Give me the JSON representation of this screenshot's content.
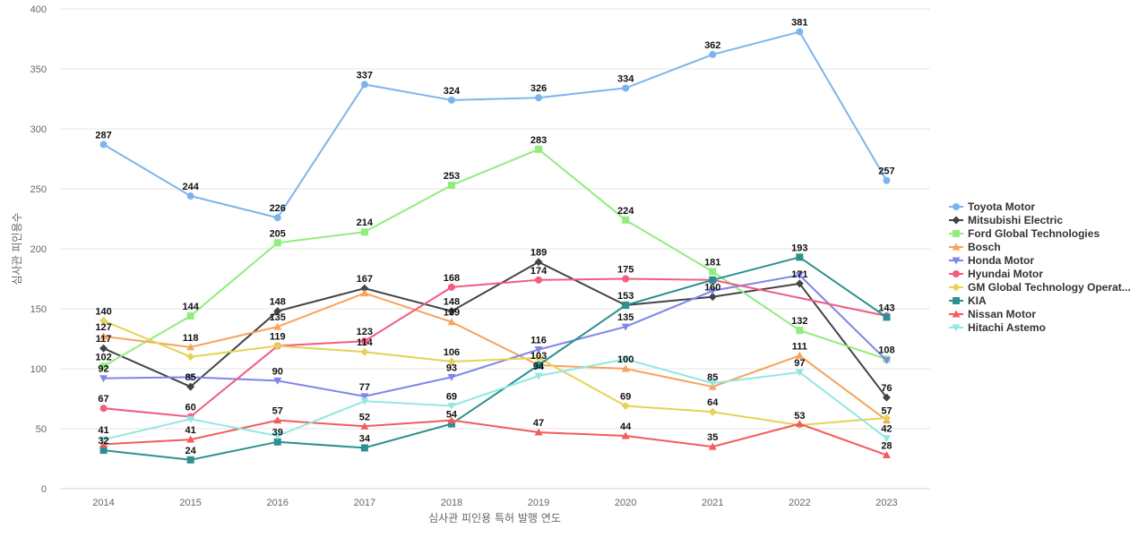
{
  "chart_data": {
    "type": "line",
    "title": "",
    "xlabel": "심사관 피인용 특허 발행 연도",
    "ylabel": "심사관 피인용수",
    "ylim": [
      0,
      400
    ],
    "yticks": [
      0,
      50,
      100,
      150,
      200,
      250,
      300,
      350,
      400
    ],
    "grid": true,
    "legend_position": "right",
    "x": [
      "2014",
      "2015",
      "2016",
      "2017",
      "2018",
      "2019",
      "2020",
      "2021",
      "2022",
      "2023"
    ],
    "series": [
      {
        "name": "Toyota Motor",
        "color": "#7cb5ec",
        "marker": "circle",
        "values": [
          287,
          244,
          226,
          337,
          324,
          326,
          334,
          362,
          381,
          257
        ]
      },
      {
        "name": "Mitsubishi Electric",
        "color": "#434348",
        "marker": "diamond",
        "values": [
          117,
          85,
          148,
          167,
          148,
          189,
          153,
          160,
          171,
          76
        ]
      },
      {
        "name": "Ford Global Technologies",
        "color": "#90ed7d",
        "marker": "square",
        "values": [
          102,
          144,
          205,
          214,
          253,
          283,
          224,
          181,
          132,
          108
        ]
      },
      {
        "name": "Bosch",
        "color": "#f7a35c",
        "marker": "triangle",
        "values": [
          127,
          118,
          135,
          163,
          139,
          103,
          100,
          85,
          111,
          57
        ]
      },
      {
        "name": "Honda Motor",
        "color": "#8085e9",
        "marker": "triangle-down",
        "values": [
          92,
          93,
          90,
          77,
          93,
          116,
          135,
          165,
          178,
          107
        ]
      },
      {
        "name": "Hyundai Motor",
        "color": "#f15c80",
        "marker": "circle",
        "values": [
          67,
          60,
          119,
          123,
          168,
          174,
          175,
          174,
          null,
          144
        ]
      },
      {
        "name": "GM Global Technology Operat...",
        "color": "#e4d354",
        "marker": "diamond",
        "values": [
          140,
          110,
          119,
          114,
          106,
          109,
          69,
          64,
          53,
          59
        ]
      },
      {
        "name": "KIA",
        "color": "#2b908f",
        "marker": "square",
        "values": [
          32,
          24,
          39,
          34,
          54,
          103,
          153,
          174,
          193,
          143
        ]
      },
      {
        "name": "Nissan Motor",
        "color": "#f45b5b",
        "marker": "triangle",
        "values": [
          37,
          41,
          57,
          52,
          57,
          47,
          44,
          35,
          54,
          28
        ]
      },
      {
        "name": "Hitachi Astemo",
        "color": "#91e8e1",
        "marker": "triangle-down",
        "values": [
          41,
          58,
          44,
          73,
          69,
          94,
          108,
          88,
          97,
          42
        ]
      }
    ],
    "data_labels": [
      {
        "text": "287",
        "x": 0,
        "y": 287
      },
      {
        "text": "244",
        "x": 1,
        "y": 244
      },
      {
        "text": "226",
        "x": 2,
        "y": 226
      },
      {
        "text": "337",
        "x": 3,
        "y": 337
      },
      {
        "text": "324",
        "x": 4,
        "y": 324
      },
      {
        "text": "326",
        "x": 5,
        "y": 326
      },
      {
        "text": "334",
        "x": 6,
        "y": 334
      },
      {
        "text": "362",
        "x": 7,
        "y": 362
      },
      {
        "text": "381",
        "x": 8,
        "y": 381
      },
      {
        "text": "257",
        "x": 9,
        "y": 257
      },
      {
        "text": "205",
        "x": 2,
        "y": 205
      },
      {
        "text": "214",
        "x": 3,
        "y": 214
      },
      {
        "text": "253",
        "x": 4,
        "y": 253
      },
      {
        "text": "283",
        "x": 5,
        "y": 283
      },
      {
        "text": "224",
        "x": 6,
        "y": 224
      },
      {
        "text": "181",
        "x": 7,
        "y": 181
      },
      {
        "text": "193",
        "x": 8,
        "y": 193
      },
      {
        "text": "140",
        "x": 0,
        "y": 140
      },
      {
        "text": "127",
        "x": 0,
        "y": 127
      },
      {
        "text": "117",
        "x": 0,
        "y": 117
      },
      {
        "text": "102",
        "x": 0,
        "y": 102
      },
      {
        "text": "92",
        "x": 0,
        "y": 92
      },
      {
        "text": "67",
        "x": 0,
        "y": 67
      },
      {
        "text": "41",
        "x": 0,
        "y": 41
      },
      {
        "text": "32",
        "x": 0,
        "y": 32
      },
      {
        "text": "144",
        "x": 1,
        "y": 144
      },
      {
        "text": "118",
        "x": 1,
        "y": 118
      },
      {
        "text": "85",
        "x": 1,
        "y": 85
      },
      {
        "text": "60",
        "x": 1,
        "y": 60
      },
      {
        "text": "41",
        "x": 1,
        "y": 41
      },
      {
        "text": "24",
        "x": 1,
        "y": 24
      },
      {
        "text": "148",
        "x": 2,
        "y": 148
      },
      {
        "text": "135",
        "x": 2,
        "y": 135
      },
      {
        "text": "119",
        "x": 2,
        "y": 119
      },
      {
        "text": "90",
        "x": 2,
        "y": 90
      },
      {
        "text": "57",
        "x": 2,
        "y": 57
      },
      {
        "text": "39",
        "x": 2,
        "y": 39
      },
      {
        "text": "167",
        "x": 3,
        "y": 167
      },
      {
        "text": "123",
        "x": 3,
        "y": 123
      },
      {
        "text": "114",
        "x": 3,
        "y": 114
      },
      {
        "text": "77",
        "x": 3,
        "y": 77
      },
      {
        "text": "52",
        "x": 3,
        "y": 52
      },
      {
        "text": "34",
        "x": 3,
        "y": 34
      },
      {
        "text": "168",
        "x": 4,
        "y": 168
      },
      {
        "text": "148",
        "x": 4,
        "y": 148
      },
      {
        "text": "139",
        "x": 4,
        "y": 139
      },
      {
        "text": "106",
        "x": 4,
        "y": 106
      },
      {
        "text": "93",
        "x": 4,
        "y": 93
      },
      {
        "text": "69",
        "x": 4,
        "y": 69
      },
      {
        "text": "54",
        "x": 4,
        "y": 54
      },
      {
        "text": "189",
        "x": 5,
        "y": 189
      },
      {
        "text": "174",
        "x": 5,
        "y": 174
      },
      {
        "text": "116",
        "x": 5,
        "y": 116
      },
      {
        "text": "103",
        "x": 5,
        "y": 103
      },
      {
        "text": "94",
        "x": 5,
        "y": 94
      },
      {
        "text": "47",
        "x": 5,
        "y": 47
      },
      {
        "text": "175",
        "x": 6,
        "y": 175
      },
      {
        "text": "153",
        "x": 6,
        "y": 153
      },
      {
        "text": "135",
        "x": 6,
        "y": 135
      },
      {
        "text": "100",
        "x": 6,
        "y": 100
      },
      {
        "text": "69",
        "x": 6,
        "y": 69
      },
      {
        "text": "44",
        "x": 6,
        "y": 44
      },
      {
        "text": "160",
        "x": 7,
        "y": 160
      },
      {
        "text": "85",
        "x": 7,
        "y": 85
      },
      {
        "text": "64",
        "x": 7,
        "y": 64
      },
      {
        "text": "35",
        "x": 7,
        "y": 35
      },
      {
        "text": "171",
        "x": 8,
        "y": 171
      },
      {
        "text": "132",
        "x": 8,
        "y": 132
      },
      {
        "text": "111",
        "x": 8,
        "y": 111
      },
      {
        "text": "97",
        "x": 8,
        "y": 97
      },
      {
        "text": "53",
        "x": 8,
        "y": 53
      },
      {
        "text": "143",
        "x": 9,
        "y": 143
      },
      {
        "text": "108",
        "x": 9,
        "y": 108
      },
      {
        "text": "76",
        "x": 9,
        "y": 76
      },
      {
        "text": "57",
        "x": 9,
        "y": 57
      },
      {
        "text": "42",
        "x": 9,
        "y": 42
      },
      {
        "text": "28",
        "x": 9,
        "y": 28
      }
    ]
  }
}
